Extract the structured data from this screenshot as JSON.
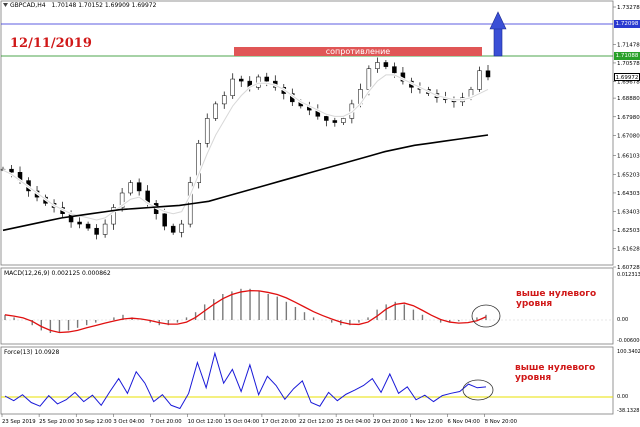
{
  "window": {
    "title": "GBPCAD,H4",
    "ohlc": "1.70148 1.70152 1.69909 1.69972"
  },
  "annotations": {
    "date": "12/11/2019",
    "resistance_label": "сопротивление",
    "macd_note_line1": "выше нулевого",
    "macd_note_line2": "уровня",
    "force_note_line1": "выше нулевого",
    "force_note_line2": "уровня"
  },
  "price_axis": {
    "ticks": [
      "1.73278",
      "1.71478",
      "1.70578",
      "1.69678",
      "1.68880",
      "1.67980",
      "1.67080",
      "1.66103",
      "1.65203",
      "1.64303",
      "1.63403",
      "1.62503",
      "1.61628",
      "1.60728"
    ],
    "tags": {
      "blue_line": "1.72098",
      "green_line": "1.71088",
      "last_price": "1.69972"
    }
  },
  "macd_panel": {
    "title": "MACD(12,26,9) 0.002125 0.000862",
    "ticks": [
      "0.0123131",
      "0.00",
      "-0.0060006"
    ]
  },
  "force_panel": {
    "title": "Force(13) 10.0928",
    "ticks": [
      "100.3402",
      "0.00",
      "-38.1328"
    ]
  },
  "time_axis": {
    "labels": [
      "23 Sep 2019",
      "25 Sep 20:00",
      "30 Sep 12:00",
      "3 Oct 04:00",
      "7 Oct 20:00",
      "10 Oct 12:00",
      "15 Oct 04:00",
      "17 Oct 20:00",
      "22 Oct 12:00",
      "25 Oct 04:00",
      "29 Oct 20:00",
      "1 Nov 12:00",
      "6 Nov 04:00",
      "8 Nov 20:00"
    ]
  },
  "chart_data": {
    "type": "line",
    "price_series": [
      1.6545,
      1.653,
      1.649,
      1.644,
      1.641,
      1.638,
      1.636,
      1.633,
      1.629,
      1.628,
      1.626,
      1.623,
      1.628,
      1.636,
      1.643,
      1.648,
      1.644,
      1.638,
      1.633,
      1.627,
      1.624,
      1.628,
      1.648,
      1.667,
      1.679,
      1.686,
      1.69,
      1.698,
      1.697,
      1.694,
      1.699,
      1.697,
      1.694,
      1.691,
      1.687,
      1.685,
      1.683,
      1.68,
      1.678,
      1.677,
      1.679,
      1.686,
      1.693,
      1.703,
      1.706,
      1.704,
      1.701,
      1.697,
      1.694,
      1.693,
      1.691,
      1.689,
      1.688,
      1.687,
      1.689,
      1.693,
      1.702,
      1.699
    ],
    "ma_fast": [
      1.654,
      1.652,
      1.649,
      1.646,
      1.643,
      1.64,
      1.637,
      1.635,
      1.633,
      1.632,
      1.631,
      1.63,
      1.631,
      1.634,
      1.637,
      1.64,
      1.641,
      1.638,
      1.636,
      1.634,
      1.633,
      1.634,
      1.642,
      1.652,
      1.662,
      1.671,
      1.678,
      1.685,
      1.69,
      1.694,
      1.696,
      1.696,
      1.695,
      1.693,
      1.69,
      1.687,
      1.685,
      1.683,
      1.681,
      1.68,
      1.68,
      1.682,
      1.686,
      1.692,
      1.697,
      1.7,
      1.7,
      1.698,
      1.696,
      1.694,
      1.692,
      1.69,
      1.689,
      1.688,
      1.688,
      1.689,
      1.691,
      1.693
    ],
    "ma_slow": [
      1.625,
      1.6265,
      1.628,
      1.6295,
      1.631,
      1.632,
      1.633,
      1.634,
      1.635,
      1.6355,
      1.636,
      1.6365,
      1.637,
      1.638,
      1.639,
      1.641,
      1.643,
      1.645,
      1.647,
      1.649,
      1.651,
      1.653,
      1.655,
      1.657,
      1.659,
      1.661,
      1.663,
      1.6645,
      1.666,
      1.667,
      1.668,
      1.669,
      1.67,
      1.671
    ],
    "resistance_level": 1.71088,
    "target_level": 1.72098,
    "macd_hist": [
      0.002,
      0.001,
      0.0,
      -0.002,
      -0.004,
      -0.005,
      -0.005,
      -0.004,
      -0.003,
      -0.002,
      -0.001,
      0.0,
      0.001,
      0.002,
      0.001,
      0.0,
      -0.001,
      -0.002,
      -0.002,
      -0.001,
      0.001,
      0.003,
      0.006,
      0.008,
      0.01,
      0.011,
      0.012,
      0.012,
      0.011,
      0.01,
      0.009,
      0.007,
      0.005,
      0.003,
      0.001,
      0.0,
      -0.001,
      -0.002,
      -0.002,
      -0.001,
      0.001,
      0.004,
      0.006,
      0.007,
      0.006,
      0.004,
      0.002,
      0.0,
      -0.001,
      -0.001,
      -0.0005,
      0.0,
      0.001,
      0.002
    ],
    "macd_signal": [
      0.002,
      0.0015,
      0.0008,
      -0.0005,
      -0.0025,
      -0.004,
      -0.0048,
      -0.0046,
      -0.004,
      -0.003,
      -0.0021,
      -0.0012,
      -0.0004,
      0.0004,
      0.0007,
      0.0004,
      -0.0002,
      -0.001,
      -0.0016,
      -0.0016,
      -0.0008,
      0.001,
      0.0035,
      0.006,
      0.0082,
      0.0098,
      0.0108,
      0.0113,
      0.0112,
      0.0106,
      0.0098,
      0.0085,
      0.0068,
      0.005,
      0.0032,
      0.0017,
      0.0004,
      -0.0008,
      -0.0016,
      -0.0017,
      -0.0008,
      0.0015,
      0.0042,
      0.006,
      0.0065,
      0.0055,
      0.0037,
      0.0018,
      0.0002,
      -0.0008,
      -0.0012,
      -0.001,
      -0.0003,
      0.0012
    ],
    "force_index": [
      2,
      -8,
      5,
      -12,
      -20,
      3,
      -15,
      -6,
      10,
      -10,
      4,
      -18,
      12,
      40,
      8,
      55,
      30,
      -10,
      5,
      -18,
      -25,
      8,
      75,
      20,
      95,
      30,
      60,
      12,
      70,
      5,
      45,
      25,
      -5,
      18,
      35,
      -12,
      -20,
      10,
      -8,
      6,
      15,
      25,
      40,
      10,
      50,
      8,
      22,
      -6,
      4,
      -10,
      3,
      8,
      12,
      28,
      20,
      22
    ]
  }
}
